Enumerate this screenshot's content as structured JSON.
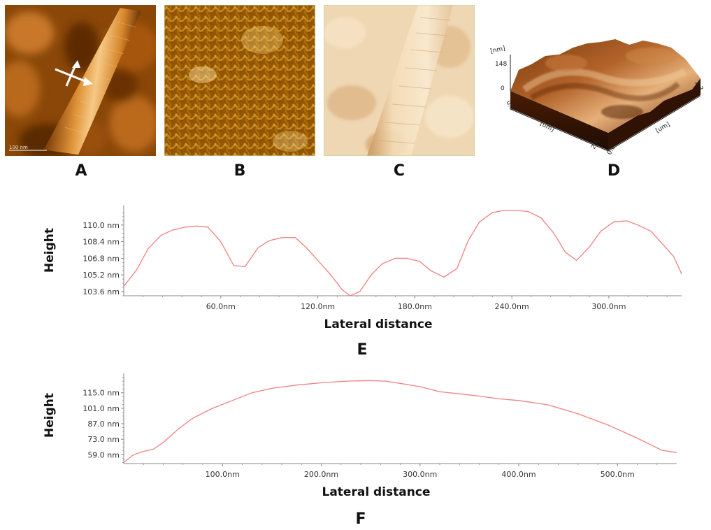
{
  "panels": {
    "a": {
      "label": "A",
      "scale_text": "100 nm"
    },
    "b": {
      "label": "B"
    },
    "c": {
      "label": "C"
    },
    "d": {
      "label": "D",
      "z_unit": "[nm]",
      "z_max": "148",
      "z_min": "0",
      "x_unit": "[um]",
      "x_min": "0.0",
      "x_max": "2.0",
      "y_unit": "[um]",
      "y_min": "0.0",
      "y_max": "2.3"
    },
    "e": {
      "label": "E"
    },
    "f": {
      "label": "F"
    }
  },
  "colors": {
    "line": "#f08080",
    "axis": "#888888",
    "afm_dark": "#5a2a06",
    "afm_mid": "#b8660f",
    "afm_light": "#f6c27a",
    "phase_bg": "#ecd3ae"
  },
  "chart_data": [
    {
      "id": "E",
      "type": "line",
      "title": "",
      "xlabel": "Lateral distance",
      "ylabel": "Height",
      "xlim": [
        0,
        345
      ],
      "ylim": [
        103.2,
        111.6
      ],
      "xticks": [
        60,
        120,
        180,
        240,
        300
      ],
      "xtick_labels": [
        "60.0nm",
        "120.0nm",
        "180.0nm",
        "240.0nm",
        "300.0nm"
      ],
      "yticks": [
        103.6,
        105.2,
        106.8,
        108.4,
        110.0
      ],
      "ytick_labels": [
        "103.6 nm",
        "105.2 nm",
        "106.8 nm",
        "108.4 nm",
        "110.0 nm"
      ],
      "grid": false,
      "x": [
        0,
        8,
        15,
        23,
        30,
        38,
        45,
        52,
        60,
        68,
        75,
        83,
        90,
        98,
        106,
        113,
        120,
        128,
        135,
        140,
        146,
        153,
        160,
        168,
        175,
        183,
        190,
        198,
        206,
        213,
        220,
        228,
        235,
        243,
        250,
        258,
        266,
        273,
        280,
        288,
        295,
        303,
        311,
        318,
        326,
        333,
        340,
        345
      ],
      "y": [
        104.1,
        105.7,
        107.7,
        109.0,
        109.5,
        109.8,
        109.9,
        109.8,
        108.4,
        106.1,
        106.0,
        107.8,
        108.5,
        108.8,
        108.8,
        107.8,
        106.6,
        105.2,
        103.8,
        103.2,
        103.6,
        105.2,
        106.3,
        106.8,
        106.8,
        106.5,
        105.6,
        105.0,
        105.8,
        108.5,
        110.3,
        111.2,
        111.4,
        111.4,
        111.3,
        110.7,
        109.2,
        107.4,
        106.6,
        107.9,
        109.4,
        110.3,
        110.4,
        110.0,
        109.4,
        108.2,
        107.0,
        105.3
      ],
      "series_color": "#f08080"
    },
    {
      "id": "F",
      "type": "line",
      "title": "",
      "xlabel": "Lateral distance",
      "ylabel": "Height",
      "xlim": [
        0,
        560
      ],
      "ylim": [
        51,
        130
      ],
      "xticks": [
        100,
        200,
        300,
        400,
        500
      ],
      "xtick_labels": [
        "100.0nm",
        "200.0nm",
        "300.0nm",
        "400.0nm",
        "500.0nm"
      ],
      "yticks": [
        59,
        73,
        87,
        101,
        115
      ],
      "ytick_labels": [
        "59.0 nm",
        "73.0 nm",
        "87.0 nm",
        "101.0 nm",
        "115.0 nm"
      ],
      "grid": false,
      "x": [
        0,
        10,
        20,
        30,
        40,
        55,
        70,
        90,
        110,
        130,
        150,
        175,
        200,
        225,
        250,
        265,
        280,
        300,
        320,
        340,
        360,
        380,
        400,
        430,
        460,
        490,
        520,
        545,
        560
      ],
      "y": [
        52,
        59,
        62,
        64,
        70,
        82,
        92,
        101,
        108,
        115,
        119,
        122,
        124,
        125.5,
        126,
        125.5,
        123.5,
        120.5,
        116,
        114,
        112,
        109.5,
        108,
        104,
        96,
        86,
        74,
        63,
        61
      ],
      "series_color": "#f08080"
    }
  ]
}
